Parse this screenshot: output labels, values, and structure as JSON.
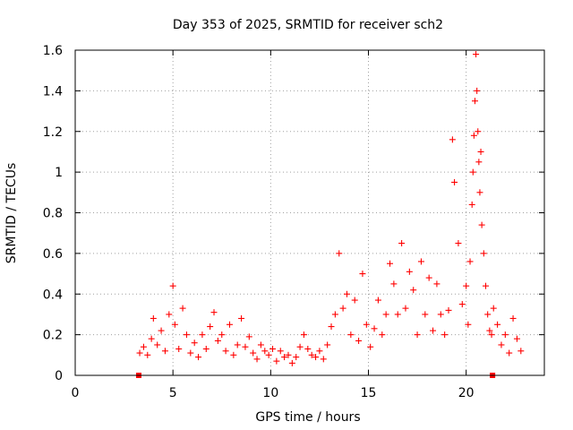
{
  "chart_data": {
    "type": "scatter",
    "title": "Day 353 of 2025, SRMTID for receiver sch2",
    "xlabel": "GPS time / hours",
    "ylabel": "SRMTID / TECUs",
    "xlim": [
      0,
      24
    ],
    "ylim": [
      0,
      1.6
    ],
    "xticks": [
      0,
      5,
      10,
      15,
      20
    ],
    "xtick_labels": [
      "0",
      "5",
      "10",
      "15",
      "20"
    ],
    "yticks": [
      0,
      0.2,
      0.4,
      0.6,
      0.8,
      1.0,
      1.2,
      1.4,
      1.6
    ],
    "ytick_labels": [
      "0",
      "0.2",
      "0.4",
      "0.6",
      "0.8",
      "1",
      "1.2",
      "1.4",
      "1.6"
    ],
    "grid": true,
    "marker": "+",
    "series_color": "#ff0000",
    "boundary_markers": [
      {
        "x": 3.25,
        "y": 0
      },
      {
        "x": 21.35,
        "y": 0
      }
    ],
    "series": [
      {
        "name": "SRMTID",
        "x": [
          3.3,
          3.5,
          3.7,
          3.9,
          4.0,
          4.2,
          4.4,
          4.6,
          4.8,
          5.0,
          5.1,
          5.3,
          5.5,
          5.7,
          5.9,
          6.1,
          6.3,
          6.5,
          6.7,
          6.9,
          7.1,
          7.3,
          7.5,
          7.7,
          7.9,
          8.1,
          8.3,
          8.5,
          8.7,
          8.9,
          9.1,
          9.3,
          9.5,
          9.7,
          9.9,
          10.1,
          10.3,
          10.5,
          10.7,
          10.9,
          11.1,
          11.3,
          11.5,
          11.7,
          11.9,
          12.1,
          12.3,
          12.5,
          12.7,
          12.9,
          13.1,
          13.3,
          13.5,
          13.7,
          13.9,
          14.1,
          14.3,
          14.5,
          14.7,
          14.9,
          15.1,
          15.3,
          15.5,
          15.7,
          15.9,
          16.1,
          16.3,
          16.5,
          16.7,
          16.9,
          17.1,
          17.3,
          17.5,
          17.7,
          17.9,
          18.1,
          18.3,
          18.5,
          18.7,
          18.9,
          19.1,
          19.3,
          19.4,
          19.6,
          19.8,
          20.0,
          20.1,
          20.2,
          20.3,
          20.35,
          20.4,
          20.45,
          20.5,
          20.55,
          20.6,
          20.65,
          20.7,
          20.75,
          20.8,
          20.9,
          21.0,
          21.1,
          21.2,
          21.3,
          21.4,
          21.6,
          21.8,
          22.0,
          22.2,
          22.4,
          22.6,
          22.8
        ],
        "y": [
          0.11,
          0.14,
          0.1,
          0.18,
          0.28,
          0.15,
          0.22,
          0.12,
          0.3,
          0.44,
          0.25,
          0.13,
          0.33,
          0.2,
          0.11,
          0.16,
          0.09,
          0.2,
          0.13,
          0.24,
          0.31,
          0.17,
          0.2,
          0.12,
          0.25,
          0.1,
          0.15,
          0.28,
          0.14,
          0.19,
          0.11,
          0.08,
          0.15,
          0.12,
          0.1,
          0.13,
          0.07,
          0.12,
          0.09,
          0.1,
          0.06,
          0.09,
          0.14,
          0.2,
          0.13,
          0.1,
          0.09,
          0.12,
          0.08,
          0.15,
          0.24,
          0.3,
          0.6,
          0.33,
          0.4,
          0.2,
          0.37,
          0.17,
          0.5,
          0.25,
          0.14,
          0.23,
          0.37,
          0.2,
          0.3,
          0.55,
          0.45,
          0.3,
          0.65,
          0.33,
          0.51,
          0.42,
          0.2,
          0.56,
          0.3,
          0.48,
          0.22,
          0.45,
          0.3,
          0.2,
          0.32,
          1.16,
          0.95,
          0.65,
          0.35,
          0.44,
          0.25,
          0.56,
          0.84,
          1.0,
          1.18,
          1.35,
          1.58,
          1.4,
          1.2,
          1.05,
          0.9,
          1.1,
          0.74,
          0.6,
          0.44,
          0.3,
          0.22,
          0.2,
          0.33,
          0.25,
          0.15,
          0.2,
          0.11,
          0.28,
          0.18,
          0.12
        ]
      }
    ]
  }
}
